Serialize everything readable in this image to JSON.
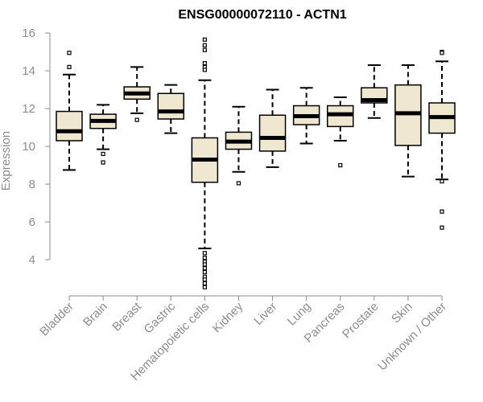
{
  "chart_data": {
    "type": "boxplot",
    "title": "ENSG00000072110 - ACTN1",
    "xlabel": "",
    "ylabel": "Expression",
    "ylim": [
      2.3,
      16.3
    ],
    "yticks": [
      4,
      6,
      8,
      10,
      12,
      14,
      16
    ],
    "box_fill": "#efe7cf",
    "categories": [
      "Bladder",
      "Brain",
      "Breast",
      "Gastric",
      "Hematopoietic cells",
      "Kidney",
      "Liver",
      "Lung",
      "Pancreas",
      "Prostate",
      "Skin",
      "Unknown / Other"
    ],
    "boxes": [
      {
        "q1": 10.3,
        "median": 10.8,
        "q3": 11.85,
        "whisker_low": 8.75,
        "whisker_high": 13.8,
        "outliers": [
          14.95,
          14.2
        ]
      },
      {
        "q1": 10.95,
        "median": 11.35,
        "q3": 11.7,
        "whisker_low": 9.85,
        "whisker_high": 12.2,
        "outliers": [
          9.6,
          9.15
        ]
      },
      {
        "q1": 12.5,
        "median": 12.8,
        "q3": 13.15,
        "whisker_low": 11.75,
        "whisker_high": 14.2,
        "outliers": [
          11.4
        ]
      },
      {
        "q1": 11.45,
        "median": 11.85,
        "q3": 12.8,
        "whisker_low": 10.7,
        "whisker_high": 13.25,
        "outliers": []
      },
      {
        "q1": 8.1,
        "median": 9.3,
        "q3": 10.45,
        "whisker_low": 4.6,
        "whisker_high": 13.5,
        "outliers": [
          15.65,
          15.35,
          15.1,
          14.4,
          14.2,
          14.05,
          4.35,
          4.1,
          3.9,
          3.75,
          3.55,
          3.35,
          3.1,
          2.95,
          2.75,
          2.55
        ]
      },
      {
        "q1": 9.85,
        "median": 10.25,
        "q3": 10.75,
        "whisker_low": 8.65,
        "whisker_high": 12.1,
        "outliers": [
          8.05
        ]
      },
      {
        "q1": 9.75,
        "median": 10.45,
        "q3": 11.65,
        "whisker_low": 8.9,
        "whisker_high": 13.0,
        "outliers": []
      },
      {
        "q1": 11.15,
        "median": 11.6,
        "q3": 12.15,
        "whisker_low": 10.15,
        "whisker_high": 13.1,
        "outliers": []
      },
      {
        "q1": 11.05,
        "median": 11.7,
        "q3": 12.15,
        "whisker_low": 10.3,
        "whisker_high": 12.6,
        "outliers": [
          9.0
        ]
      },
      {
        "q1": 12.3,
        "median": 12.45,
        "q3": 13.1,
        "whisker_low": 11.5,
        "whisker_high": 14.3,
        "outliers": []
      },
      {
        "q1": 10.05,
        "median": 11.75,
        "q3": 13.25,
        "whisker_low": 8.4,
        "whisker_high": 14.3,
        "outliers": []
      },
      {
        "q1": 10.7,
        "median": 11.55,
        "q3": 12.3,
        "whisker_low": 8.25,
        "whisker_high": 14.5,
        "outliers": [
          15.0,
          14.95,
          8.15,
          6.55,
          5.7
        ]
      }
    ]
  }
}
